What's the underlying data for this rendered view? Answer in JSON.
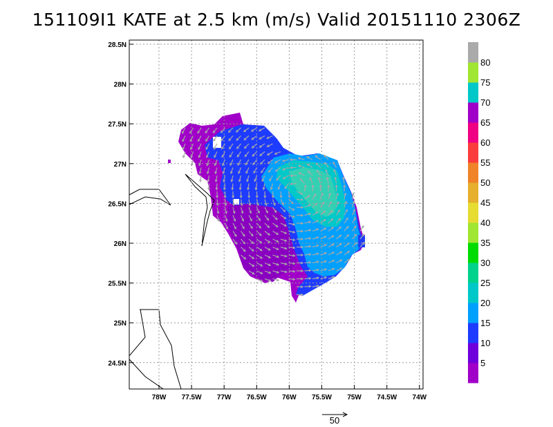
{
  "title": "151109I1 KATE at 2.5 km (m/s) Valid 20151110 2306Z",
  "map": {
    "lat_labels": [
      "28.5N",
      "28N",
      "27.5N",
      "27N",
      "26.5N",
      "26N",
      "25.5N",
      "25N",
      "24.5N"
    ],
    "lon_labels": [
      "78W",
      "77.5W",
      "77W",
      "76.5W",
      "76W",
      "75.5W",
      "75W",
      "74.5W",
      "74W"
    ],
    "reference_vector_label": "50"
  },
  "colorbar": {
    "labels": [
      "5",
      "10",
      "15",
      "20",
      "25",
      "30",
      "35",
      "40",
      "45",
      "50",
      "55",
      "60",
      "65",
      "70",
      "75",
      "80"
    ],
    "colors": [
      "#a000c8",
      "#6e00dc",
      "#1e3cff",
      "#00a0ff",
      "#00c8c8",
      "#00d28c",
      "#00dc00",
      "#a0e632",
      "#e6dc32",
      "#e6af2d",
      "#f08228",
      "#fa3c3c",
      "#f00082",
      "#a000c8",
      "#00c8c8",
      "#a0e632",
      "#aaaaaa"
    ]
  }
}
